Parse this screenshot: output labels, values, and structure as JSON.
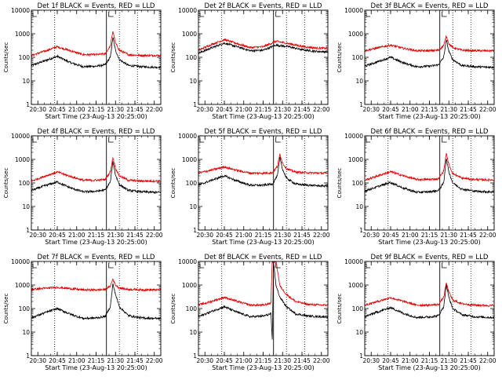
{
  "figure": {
    "panel_titles": [
      "Det 1f BLACK = Events, RED = LLD",
      "Det 2f BLACK = Events, RED = LLD",
      "Det 3f BLACK = Events, RED = LLD",
      "Det 4f BLACK = Events, RED = LLD",
      "Det 5f BLACK = Events, RED = LLD",
      "Det 6f BLACK = Events, RED = LLD",
      "Det 7f BLACK = Events, RED = LLD",
      "Det 8f BLACK = Events, RED = LLD",
      "Det 9f BLACK = Events, RED = LLD"
    ],
    "xlabel": "Start Time (23-Aug-13 20:25:00)",
    "ylabel": "Counts/sec",
    "x_ticks": [
      "20:30",
      "20:45",
      "21:00",
      "21:15",
      "21:30",
      "21:45",
      "22:00"
    ],
    "y_ticks": [
      "1",
      "10",
      "100",
      "1000",
      "10000"
    ],
    "colors": {
      "events": "#000000",
      "lld": "#e00000",
      "background": "#ffffff"
    }
  },
  "chart_data": [
    {
      "type": "line",
      "title": "Det 1f BLACK = Events, RED = LLD",
      "xlabel": "Start Time (23-Aug-13 20:25:00)",
      "ylabel": "Counts/sec",
      "x_range": [
        "20:25",
        "22:05"
      ],
      "y_range": [
        1,
        10000
      ],
      "y_scale": "log",
      "dotted_vlines": [
        "20:43",
        "21:33",
        "21:47"
      ],
      "solid_vlines": [
        "21:23"
      ],
      "series": [
        {
          "name": "Events",
          "color": "#000000",
          "x": [
            "20:25",
            "20:35",
            "20:45",
            "20:55",
            "21:05",
            "21:15",
            "21:22",
            "21:26",
            "21:28",
            "21:30",
            "21:33",
            "21:40",
            "21:50",
            "22:00",
            "22:05"
          ],
          "y": [
            45,
            70,
            110,
            60,
            40,
            42,
            48,
            100,
            700,
            200,
            80,
            45,
            40,
            38,
            38
          ]
        },
        {
          "name": "LLD",
          "color": "#e00000",
          "x": [
            "20:25",
            "20:35",
            "20:45",
            "20:55",
            "21:05",
            "21:15",
            "21:22",
            "21:26",
            "21:28",
            "21:30",
            "21:33",
            "21:40",
            "21:50",
            "22:00",
            "22:05"
          ],
          "y": [
            120,
            180,
            280,
            190,
            130,
            130,
            140,
            300,
            1300,
            400,
            200,
            130,
            120,
            120,
            120
          ]
        }
      ]
    },
    {
      "type": "line",
      "title": "Det 2f BLACK = Events, RED = LLD",
      "xlabel": "Start Time (23-Aug-13 20:25:00)",
      "ylabel": "Counts/sec",
      "x_range": [
        "20:25",
        "22:05"
      ],
      "y_range": [
        1,
        10000
      ],
      "y_scale": "log",
      "dotted_vlines": [
        "20:43",
        "21:33",
        "21:47"
      ],
      "solid_vlines": [
        "21:23"
      ],
      "series": [
        {
          "name": "Events",
          "color": "#000000",
          "x": [
            "20:25",
            "20:35",
            "20:45",
            "20:55",
            "21:05",
            "21:15",
            "21:25",
            "21:35",
            "21:45",
            "21:55",
            "22:05"
          ],
          "y": [
            150,
            250,
            400,
            280,
            190,
            200,
            330,
            280,
            210,
            180,
            170
          ]
        },
        {
          "name": "LLD",
          "color": "#e00000",
          "x": [
            "20:25",
            "20:35",
            "20:45",
            "20:55",
            "21:05",
            "21:15",
            "21:25",
            "21:35",
            "21:45",
            "21:55",
            "22:05"
          ],
          "y": [
            200,
            350,
            560,
            380,
            260,
            280,
            480,
            380,
            290,
            250,
            240
          ]
        }
      ]
    },
    {
      "type": "line",
      "title": "Det 3f BLACK = Events, RED = LLD",
      "xlabel": "Start Time (23-Aug-13 20:25:00)",
      "ylabel": "Counts/sec",
      "x_range": [
        "20:25",
        "22:05"
      ],
      "y_range": [
        1,
        10000
      ],
      "y_scale": "log",
      "dotted_vlines": [
        "20:43",
        "21:33",
        "21:47"
      ],
      "solid_vlines": [
        "21:23"
      ],
      "series": [
        {
          "name": "Events",
          "color": "#000000",
          "x": [
            "20:25",
            "20:35",
            "20:45",
            "20:55",
            "21:05",
            "21:15",
            "21:22",
            "21:26",
            "21:28",
            "21:30",
            "21:33",
            "21:40",
            "21:50",
            "22:00",
            "22:05"
          ],
          "y": [
            42,
            65,
            100,
            58,
            40,
            42,
            48,
            100,
            550,
            180,
            80,
            45,
            40,
            38,
            38
          ]
        },
        {
          "name": "LLD",
          "color": "#e00000",
          "x": [
            "20:25",
            "20:35",
            "20:45",
            "20:55",
            "21:05",
            "21:15",
            "21:22",
            "21:26",
            "21:28",
            "21:30",
            "21:33",
            "21:40",
            "21:50",
            "22:00",
            "22:05"
          ],
          "y": [
            190,
            250,
            330,
            240,
            190,
            190,
            200,
            320,
            800,
            380,
            260,
            200,
            190,
            190,
            190
          ]
        }
      ]
    },
    {
      "type": "line",
      "title": "Det 4f BLACK = Events, RED = LLD",
      "xlabel": "Start Time (23-Aug-13 20:25:00)",
      "ylabel": "Counts/sec",
      "x_range": [
        "20:25",
        "22:05"
      ],
      "y_range": [
        1,
        10000
      ],
      "y_scale": "log",
      "dotted_vlines": [
        "20:43",
        "21:33",
        "21:47"
      ],
      "solid_vlines": [
        "21:23"
      ],
      "series": [
        {
          "name": "Events",
          "color": "#000000",
          "x": [
            "20:25",
            "20:35",
            "20:45",
            "20:55",
            "21:05",
            "21:15",
            "21:22",
            "21:26",
            "21:28",
            "21:30",
            "21:33",
            "21:40",
            "21:50",
            "22:00",
            "22:05"
          ],
          "y": [
            48,
            75,
            110,
            62,
            42,
            44,
            50,
            110,
            800,
            220,
            85,
            48,
            42,
            40,
            40
          ]
        },
        {
          "name": "LLD",
          "color": "#e00000",
          "x": [
            "20:25",
            "20:35",
            "20:45",
            "20:55",
            "21:05",
            "21:15",
            "21:22",
            "21:26",
            "21:28",
            "21:30",
            "21:33",
            "21:40",
            "21:50",
            "22:00",
            "22:05"
          ],
          "y": [
            120,
            190,
            290,
            190,
            130,
            130,
            140,
            300,
            1200,
            420,
            200,
            130,
            120,
            120,
            120
          ]
        }
      ]
    },
    {
      "type": "line",
      "title": "Det 5f BLACK = Events, RED = LLD",
      "xlabel": "Start Time (23-Aug-13 20:25:00)",
      "ylabel": "Counts/sec",
      "x_range": [
        "20:25",
        "22:05"
      ],
      "y_range": [
        1,
        10000
      ],
      "y_scale": "log",
      "dotted_vlines": [
        "20:43",
        "21:33",
        "21:47"
      ],
      "solid_vlines": [
        "21:23"
      ],
      "series": [
        {
          "name": "Events",
          "color": "#000000",
          "x": [
            "20:25",
            "20:35",
            "20:45",
            "20:55",
            "21:05",
            "21:15",
            "21:22",
            "21:26",
            "21:28",
            "21:30",
            "21:33",
            "21:40",
            "21:50",
            "22:00",
            "22:05"
          ],
          "y": [
            80,
            130,
            200,
            120,
            80,
            80,
            90,
            200,
            1200,
            380,
            160,
            90,
            80,
            75,
            75
          ]
        },
        {
          "name": "LLD",
          "color": "#e00000",
          "x": [
            "20:25",
            "20:35",
            "20:45",
            "20:55",
            "21:05",
            "21:15",
            "21:22",
            "21:26",
            "21:28",
            "21:30",
            "21:33",
            "21:40",
            "21:50",
            "22:00",
            "22:05"
          ],
          "y": [
            260,
            350,
            480,
            340,
            260,
            260,
            270,
            500,
            1700,
            700,
            400,
            290,
            270,
            260,
            260
          ]
        }
      ]
    },
    {
      "type": "line",
      "title": "Det 6f BLACK = Events, RED = LLD",
      "xlabel": "Start Time (23-Aug-13 20:25:00)",
      "ylabel": "Counts/sec",
      "x_range": [
        "20:25",
        "22:05"
      ],
      "y_range": [
        1,
        10000
      ],
      "y_scale": "log",
      "dotted_vlines": [
        "20:43",
        "21:33",
        "21:47"
      ],
      "solid_vlines": [
        "21:23"
      ],
      "series": [
        {
          "name": "Events",
          "color": "#000000",
          "x": [
            "20:25",
            "20:35",
            "20:45",
            "20:55",
            "21:05",
            "21:15",
            "21:22",
            "21:26",
            "21:28",
            "21:30",
            "21:33",
            "21:40",
            "21:50",
            "22:00",
            "22:05"
          ],
          "y": [
            45,
            70,
            105,
            60,
            40,
            42,
            48,
            100,
            1100,
            300,
            100,
            55,
            45,
            42,
            42
          ]
        },
        {
          "name": "LLD",
          "color": "#e00000",
          "x": [
            "20:25",
            "20:35",
            "20:45",
            "20:55",
            "21:05",
            "21:15",
            "21:22",
            "21:26",
            "21:28",
            "21:30",
            "21:33",
            "21:40",
            "21:50",
            "22:00",
            "22:05"
          ],
          "y": [
            130,
            200,
            300,
            200,
            140,
            140,
            150,
            320,
            1800,
            600,
            250,
            160,
            140,
            135,
            135
          ]
        }
      ]
    },
    {
      "type": "line",
      "title": "Det 7f BLACK = Events, RED = LLD",
      "xlabel": "Start Time (23-Aug-13 20:25:00)",
      "ylabel": "Counts/sec",
      "x_range": [
        "20:25",
        "22:05"
      ],
      "y_range": [
        1,
        10000
      ],
      "y_scale": "log",
      "dotted_vlines": [
        "20:43",
        "21:33",
        "21:47"
      ],
      "solid_vlines": [
        "21:23"
      ],
      "series": [
        {
          "name": "Events",
          "color": "#000000",
          "x": [
            "20:25",
            "20:35",
            "20:45",
            "20:55",
            "21:05",
            "21:15",
            "21:22",
            "21:26",
            "21:28",
            "21:30",
            "21:33",
            "21:40",
            "21:50",
            "22:00",
            "22:05"
          ],
          "y": [
            40,
            65,
            100,
            58,
            38,
            40,
            46,
            120,
            1100,
            400,
            120,
            50,
            40,
            38,
            38
          ]
        },
        {
          "name": "LLD",
          "color": "#e00000",
          "x": [
            "20:25",
            "20:35",
            "20:45",
            "20:55",
            "21:05",
            "21:15",
            "21:22",
            "21:26",
            "21:28",
            "21:30",
            "21:33",
            "21:40",
            "21:50",
            "22:00",
            "22:05"
          ],
          "y": [
            650,
            720,
            800,
            700,
            620,
            620,
            640,
            900,
            1800,
            1000,
            750,
            650,
            630,
            620,
            620
          ]
        }
      ]
    },
    {
      "type": "line",
      "title": "Det 8f BLACK = Events, RED = LLD",
      "xlabel": "Start Time (23-Aug-13 20:25:00)",
      "ylabel": "Counts/sec",
      "x_range": [
        "20:25",
        "22:05"
      ],
      "y_range": [
        1,
        10000
      ],
      "y_scale": "log",
      "dotted_vlines": [
        "20:43",
        "21:33",
        "21:47"
      ],
      "solid_vlines": [
        "21:23"
      ],
      "series": [
        {
          "name": "Events",
          "color": "#000000",
          "x": [
            "20:25",
            "20:35",
            "20:45",
            "20:55",
            "21:05",
            "21:15",
            "21:21",
            "21:22",
            "21:23",
            "21:25",
            "21:28",
            "21:33",
            "21:40",
            "21:50",
            "22:00",
            "22:05"
          ],
          "y": [
            45,
            75,
            120,
            70,
            45,
            48,
            60,
            5,
            10000,
            900,
            300,
            120,
            60,
            48,
            45,
            45
          ]
        },
        {
          "name": "LLD",
          "color": "#e00000",
          "x": [
            "20:25",
            "20:35",
            "20:45",
            "20:55",
            "21:05",
            "21:15",
            "21:21",
            "21:22",
            "21:23",
            "21:25",
            "21:28",
            "21:33",
            "21:40",
            "21:50",
            "22:00",
            "22:05"
          ],
          "y": [
            140,
            200,
            300,
            200,
            140,
            140,
            170,
            10000,
            10000,
            10000,
            900,
            400,
            200,
            150,
            140,
            140
          ]
        }
      ]
    },
    {
      "type": "line",
      "title": "Det 9f BLACK = Events, RED = LLD",
      "xlabel": "Start Time (23-Aug-13 20:25:00)",
      "ylabel": "Counts/sec",
      "x_range": [
        "20:25",
        "22:05"
      ],
      "y_range": [
        1,
        10000
      ],
      "y_scale": "log",
      "dotted_vlines": [
        "20:43",
        "21:33",
        "21:47"
      ],
      "solid_vlines": [
        "21:23"
      ],
      "series": [
        {
          "name": "Events",
          "color": "#000000",
          "x": [
            "20:25",
            "20:35",
            "20:45",
            "20:55",
            "21:05",
            "21:15",
            "21:22",
            "21:26",
            "21:28",
            "21:30",
            "21:33",
            "21:40",
            "21:50",
            "22:00",
            "22:05"
          ],
          "y": [
            45,
            72,
            110,
            62,
            42,
            44,
            50,
            120,
            1000,
            300,
            100,
            55,
            45,
            42,
            42
          ]
        },
        {
          "name": "LLD",
          "color": "#e00000",
          "x": [
            "20:25",
            "20:35",
            "20:45",
            "20:55",
            "21:05",
            "21:15",
            "21:22",
            "21:26",
            "21:28",
            "21:30",
            "21:33",
            "21:40",
            "21:50",
            "22:00",
            "22:05"
          ],
          "y": [
            140,
            200,
            290,
            200,
            140,
            140,
            150,
            300,
            1200,
            500,
            230,
            160,
            140,
            135,
            135
          ]
        }
      ]
    }
  ]
}
